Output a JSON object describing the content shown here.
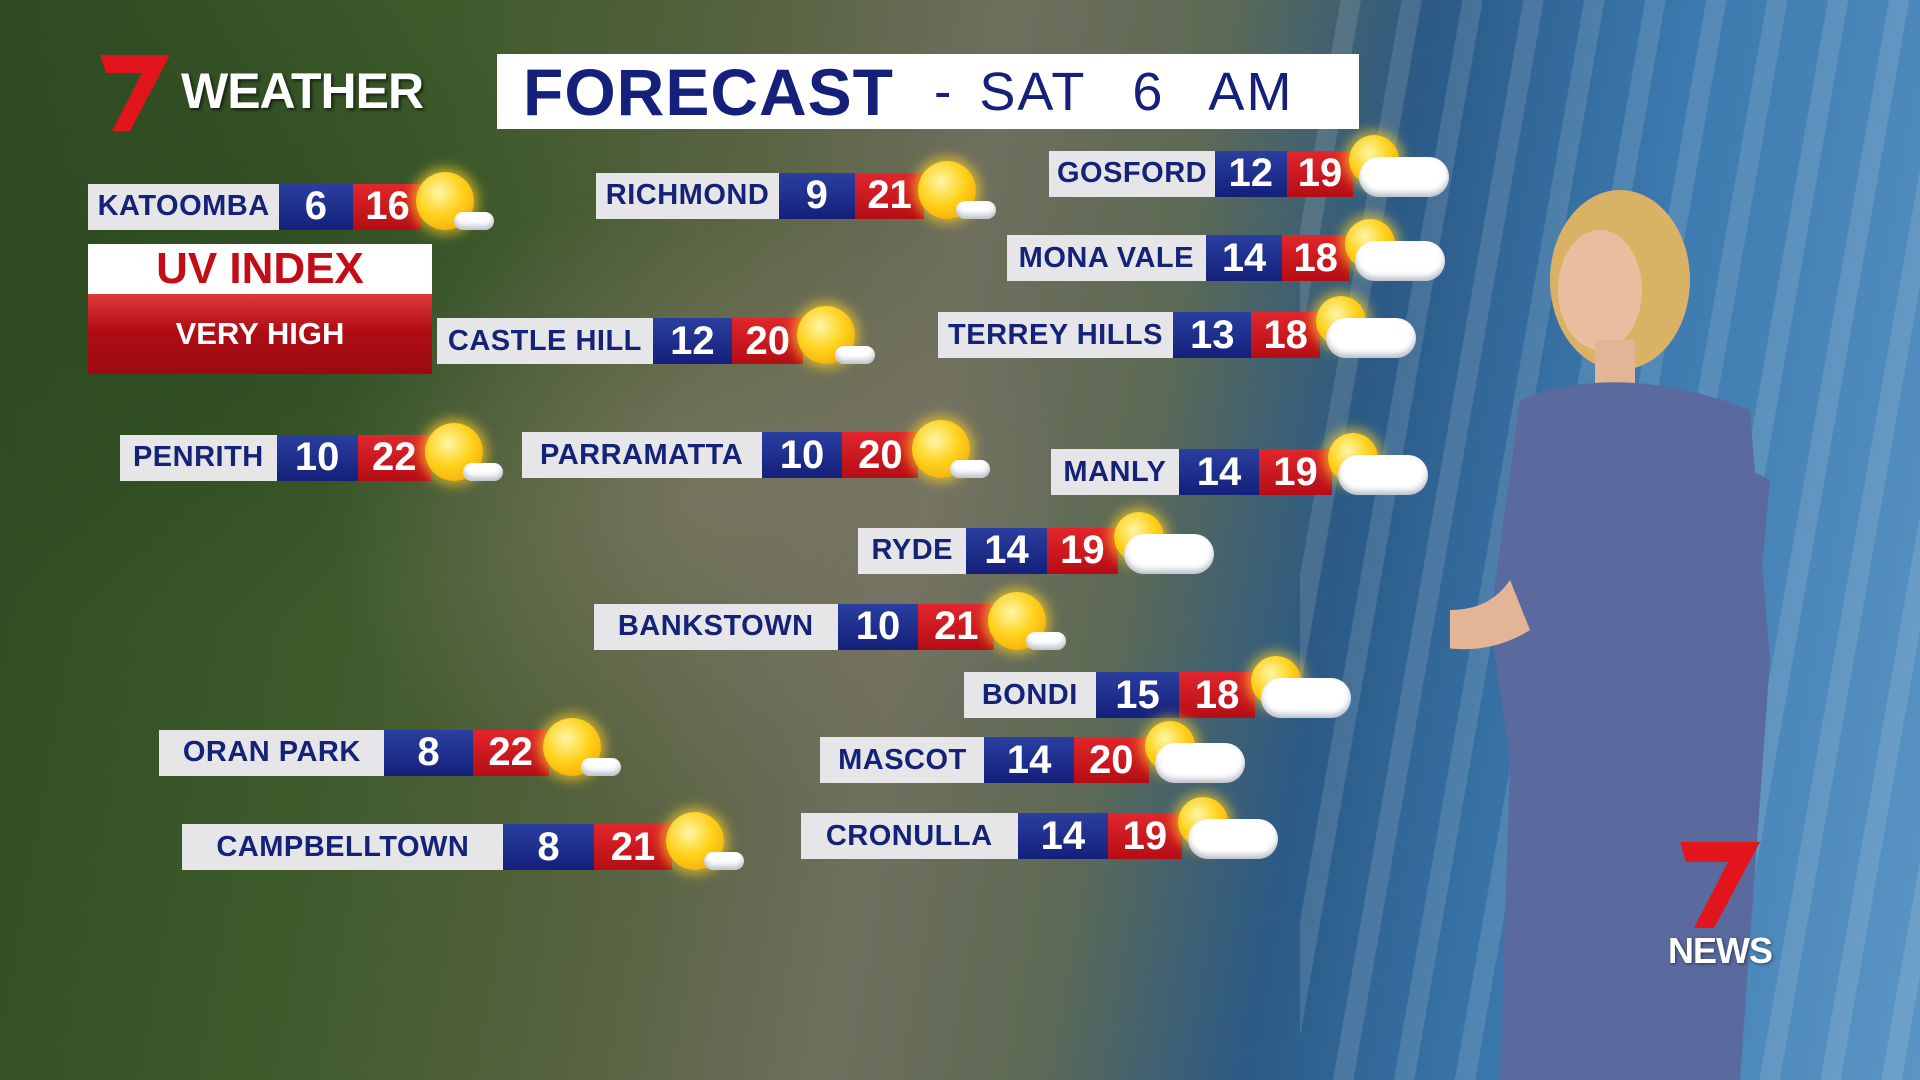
{
  "branding": {
    "logo_number": "7",
    "logo_word": "WEATHER",
    "news_logo_word": "NEWS",
    "accent_red": "#e2262c",
    "navy": "#14207a"
  },
  "header": {
    "title": "FORECAST",
    "separator": "-",
    "day_time": "SAT 6 AM"
  },
  "uv_index": {
    "label": "UV INDEX",
    "level": "VERY HIGH"
  },
  "locations": [
    {
      "name": "KATOOMBA",
      "min": "6",
      "max": "16",
      "icon": "sunny-icon"
    },
    {
      "name": "RICHMOND",
      "min": "9",
      "max": "21",
      "icon": "sunny-icon"
    },
    {
      "name": "GOSFORD",
      "min": "12",
      "max": "19",
      "icon": "partly-cloudy-icon"
    },
    {
      "name": "MONA VALE",
      "min": "14",
      "max": "18",
      "icon": "partly-cloudy-icon"
    },
    {
      "name": "TERREY HILLS",
      "min": "13",
      "max": "18",
      "icon": "partly-cloudy-icon"
    },
    {
      "name": "CASTLE HILL",
      "min": "12",
      "max": "20",
      "icon": "sunny-icon"
    },
    {
      "name": "PENRITH",
      "min": "10",
      "max": "22",
      "icon": "sunny-icon"
    },
    {
      "name": "PARRAMATTA",
      "min": "10",
      "max": "20",
      "icon": "sunny-icon"
    },
    {
      "name": "MANLY",
      "min": "14",
      "max": "19",
      "icon": "partly-cloudy-icon"
    },
    {
      "name": "RYDE",
      "min": "14",
      "max": "19",
      "icon": "partly-cloudy-icon"
    },
    {
      "name": "BANKSTOWN",
      "min": "10",
      "max": "21",
      "icon": "sunny-icon"
    },
    {
      "name": "BONDI",
      "min": "15",
      "max": "18",
      "icon": "partly-cloudy-icon"
    },
    {
      "name": "ORAN PARK",
      "min": "8",
      "max": "22",
      "icon": "sunny-icon"
    },
    {
      "name": "MASCOT",
      "min": "14",
      "max": "20",
      "icon": "partly-cloudy-icon"
    },
    {
      "name": "CAMPBELLTOWN",
      "min": "8",
      "max": "21",
      "icon": "sunny-icon"
    },
    {
      "name": "CRONULLA",
      "min": "14",
      "max": "19",
      "icon": "partly-cloudy-icon"
    }
  ]
}
